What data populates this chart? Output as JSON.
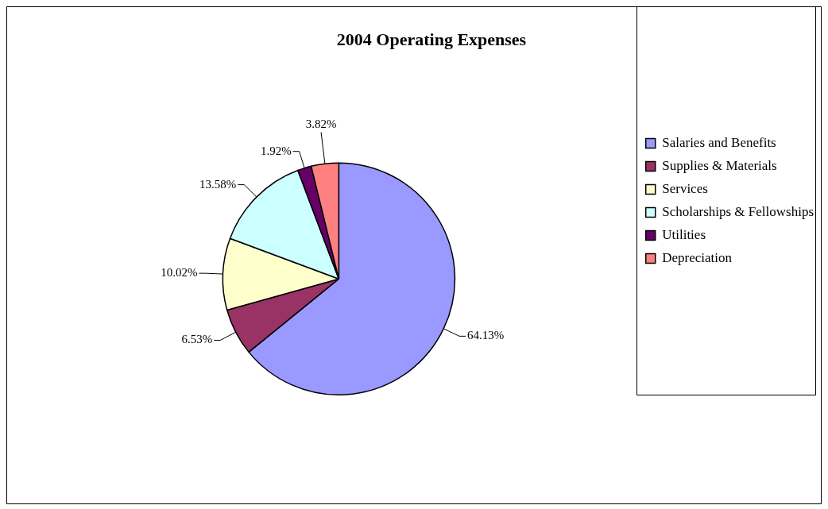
{
  "chart_data": {
    "type": "pie",
    "title": "2004 Operating Expenses",
    "categories": [
      "Salaries and Benefits",
      "Supplies & Materials",
      "Services",
      "Scholarships & Fellowships",
      "Utilities",
      "Depreciation"
    ],
    "values": [
      64.13,
      6.53,
      10.02,
      13.58,
      1.92,
      3.82
    ],
    "value_labels": [
      "64.13%",
      "6.53%",
      "10.02%",
      "13.58%",
      "1.92%",
      "3.82%"
    ],
    "colors": [
      "#9999ff",
      "#993366",
      "#ffffcc",
      "#ccffff",
      "#660066",
      "#ff8080"
    ],
    "legend": "right"
  }
}
